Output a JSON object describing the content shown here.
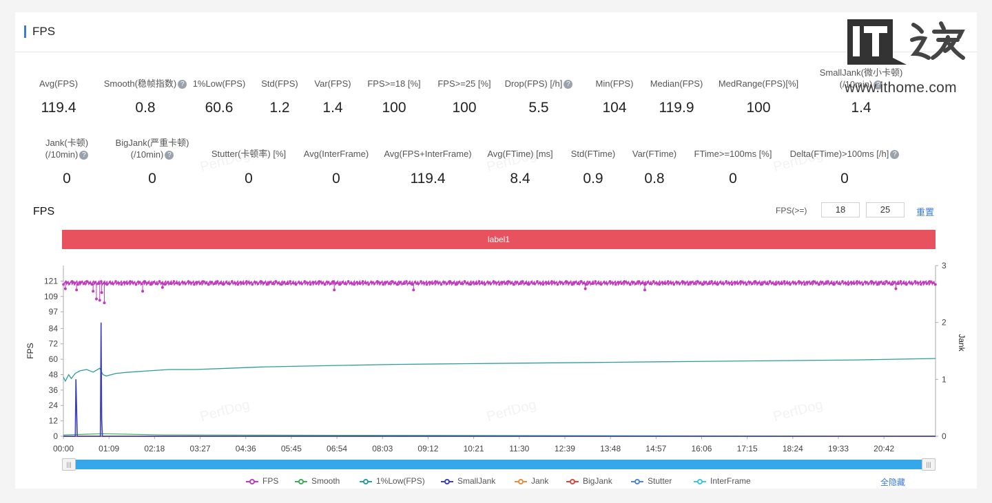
{
  "header": {
    "title": "FPS"
  },
  "stats_row1": [
    {
      "label": "Avg(FPS)",
      "value": "119.4",
      "help": false
    },
    {
      "label": "Smooth(稳帧指数)",
      "value": "0.8",
      "help": true
    },
    {
      "label": "1%Low(FPS)",
      "value": "60.6",
      "help": false
    },
    {
      "label": "Std(FPS)",
      "value": "1.2",
      "help": false
    },
    {
      "label": "Var(FPS)",
      "value": "1.4",
      "help": false
    },
    {
      "label": "FPS>=18 [%]",
      "value": "100",
      "help": false
    },
    {
      "label": "FPS>=25 [%]",
      "value": "100",
      "help": false
    },
    {
      "label": "Drop(FPS) [/h]",
      "value": "5.5",
      "help": true
    },
    {
      "label": "Min(FPS)",
      "value": "104",
      "help": false
    },
    {
      "label": "Median(FPS)",
      "value": "119.9",
      "help": false
    },
    {
      "label": "MedRange(FPS)[%]",
      "value": "100",
      "help": false
    },
    {
      "label": "SmallJank(微小卡顿)",
      "label2": "(/10min)",
      "value": "1.4",
      "help": true
    }
  ],
  "stats_row2": [
    {
      "label": "Jank(卡顿)",
      "label2": "(/10min)",
      "value": "0",
      "help": true
    },
    {
      "label": "BigJank(严重卡顿)",
      "label2": "(/10min)",
      "value": "0",
      "help": true
    },
    {
      "label": "Stutter(卡顿率) [%]",
      "value": "0",
      "help": false
    },
    {
      "label": "Avg(InterFrame)",
      "value": "0",
      "help": false
    },
    {
      "label": "Avg(FPS+InterFrame)",
      "value": "119.4",
      "help": false
    },
    {
      "label": "Avg(FTime) [ms]",
      "value": "8.4",
      "help": false
    },
    {
      "label": "Std(FTime)",
      "value": "0.9",
      "help": false
    },
    {
      "label": "Var(FTime)",
      "value": "0.8",
      "help": false
    },
    {
      "label": "FTime>=100ms [%]",
      "value": "0",
      "help": false
    },
    {
      "label": "Delta(FTime)>100ms [/h]",
      "value": "0",
      "help": true
    }
  ],
  "chart_section": {
    "title": "FPS",
    "threshold_label": "FPS(>=)",
    "threshold_1": "18",
    "threshold_2": "25",
    "reset_label": "重置",
    "band_label": "label1",
    "hide_all_label": "全隐藏",
    "help_glyph": "?",
    "slider_glyph": "|||"
  },
  "watermarks": {
    "text": "PerfDog"
  },
  "logo": {
    "text": "IT之家",
    "url": "www.ithome.com"
  },
  "chart_data": {
    "type": "line",
    "x_tick_labels": [
      "00:00",
      "01:09",
      "02:18",
      "03:27",
      "04:36",
      "05:45",
      "06:54",
      "08:03",
      "09:12",
      "10:21",
      "11:30",
      "12:39",
      "13:48",
      "14:57",
      "16:06",
      "17:15",
      "18:24",
      "19:33",
      "20:42"
    ],
    "x_range_seconds": [
      0,
      1320
    ],
    "ylabel": "FPS",
    "ylabel_right": "Jank",
    "y_ticks": [
      0,
      12,
      24,
      36,
      48,
      60,
      72,
      84,
      97,
      109,
      121
    ],
    "ylim": [
      0,
      133
    ],
    "y_right_ticks": [
      0,
      1,
      2,
      3
    ],
    "y_right_lim": [
      0,
      3
    ],
    "grid": false,
    "legend_position": "bottom",
    "series": [
      {
        "name": "FPS",
        "color": "#c13bbd",
        "axis": "left",
        "values_note_free": true,
        "x": [
          0,
          5,
          10,
          20,
          30,
          40,
          50,
          55,
          60,
          62,
          65,
          70,
          80,
          100,
          120,
          150,
          200,
          300,
          400,
          500,
          600,
          700,
          800,
          900,
          1000,
          1100,
          1200,
          1320
        ],
        "y": [
          119,
          114,
          119,
          117,
          119,
          112,
          119,
          106,
          119,
          104,
          118,
          119,
          119,
          120,
          119,
          120,
          119,
          120,
          119,
          120,
          119,
          120,
          119,
          120,
          119,
          120,
          119,
          120
        ],
        "dips": [
          [
            3,
            115
          ],
          [
            20,
            114
          ],
          [
            45,
            113
          ],
          [
            50,
            107
          ],
          [
            55,
            106
          ],
          [
            58,
            112
          ],
          [
            62,
            104
          ],
          [
            120,
            113
          ],
          [
            150,
            116
          ],
          [
            410,
            114
          ],
          [
            530,
            114
          ],
          [
            790,
            115
          ],
          [
            880,
            114
          ],
          [
            1260,
            115
          ]
        ]
      },
      {
        "name": "Smooth",
        "color": "#3fae5a",
        "axis": "left",
        "x": [
          0,
          60,
          150,
          1320
        ],
        "y": [
          1,
          2,
          1,
          0
        ]
      },
      {
        "name": "1%Low(FPS)",
        "color": "#2f9c9c",
        "axis": "left",
        "x": [
          0,
          3,
          8,
          12,
          18,
          25,
          35,
          45,
          55,
          60,
          65,
          80,
          100,
          130,
          160,
          200,
          250,
          300,
          400,
          500,
          600,
          700,
          800,
          900,
          1000,
          1100,
          1200,
          1320
        ],
        "y": [
          46,
          43,
          48,
          45,
          49,
          51,
          52,
          50,
          53,
          48,
          47,
          49,
          50,
          51,
          52,
          52,
          53,
          54,
          55,
          56,
          56.5,
          57,
          57.5,
          58,
          58.5,
          59,
          59.5,
          60.6
        ]
      },
      {
        "name": "SmallJank",
        "color": "#3a3ec4",
        "axis": "right",
        "x": [
          0,
          18,
          19,
          20,
          21,
          56,
          57,
          58,
          59,
          1320
        ],
        "y": [
          0,
          0,
          1,
          0.5,
          0,
          0,
          2,
          0.3,
          0,
          0
        ]
      },
      {
        "name": "Jank",
        "color": "#f08a3c",
        "axis": "right",
        "x": [
          0,
          1320
        ],
        "y": [
          0,
          0
        ]
      },
      {
        "name": "BigJank",
        "color": "#e0453b",
        "axis": "right",
        "x": [
          0,
          1320
        ],
        "y": [
          0,
          0
        ]
      },
      {
        "name": "Stutter",
        "color": "#4f86e0",
        "axis": "right",
        "x": [
          0,
          1320
        ],
        "y": [
          0,
          0
        ]
      },
      {
        "name": "InterFrame",
        "color": "#3ec9d6",
        "axis": "left",
        "x": [
          0,
          1320
        ],
        "y": [
          0,
          0
        ]
      }
    ]
  }
}
